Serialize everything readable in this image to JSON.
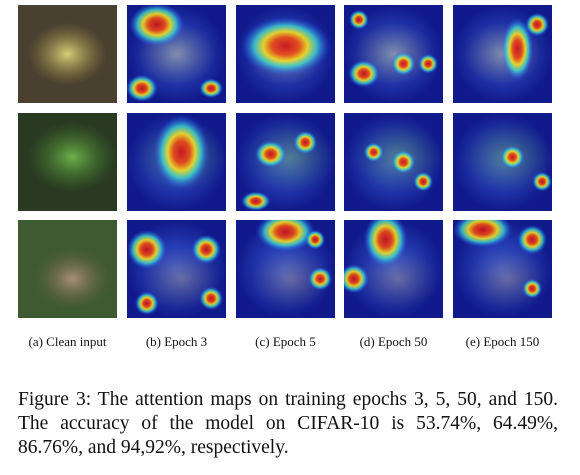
{
  "figure": {
    "subfigures": [
      {
        "label": "(a) Clean input"
      },
      {
        "label": "(b) Epoch 3"
      },
      {
        "label": "(c) Epoch 5"
      },
      {
        "label": "(d) Epoch 50"
      },
      {
        "label": "(e) Epoch 150"
      }
    ],
    "caption": "Figure 3: The attention maps on training epochs 3, 5, 50, and 150. The accuracy of the model on CIFAR-10 is 53.74%, 64.49%, 86.76%, and 94,92%, respectively."
  }
}
